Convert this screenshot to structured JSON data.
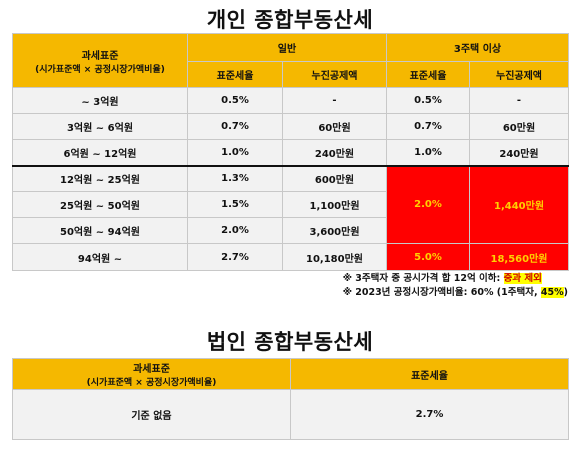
{
  "individual": {
    "title": "개인 종합부동산세",
    "header": {
      "base_line1": "과세표준",
      "base_line2": "(시가표준액 × 공정시장가액비율)",
      "general": "일반",
      "multi": "3주택 이상",
      "rate": "표준세율",
      "deduction": "누진공제액"
    },
    "rows": [
      {
        "base": "~ 3억원",
        "rate": "0.5%",
        "deduction": "-",
        "m_rate": "0.5%",
        "m_deduction": "-"
      },
      {
        "base": "3억원 ~ 6억원",
        "rate": "0.7%",
        "deduction": "60만원",
        "m_rate": "0.7%",
        "m_deduction": "60만원"
      },
      {
        "base": "6억원 ~ 12억원",
        "rate": "1.0%",
        "deduction": "240만원",
        "m_rate": "1.0%",
        "m_deduction": "240만원"
      },
      {
        "base": "12억원 ~ 25억원",
        "rate": "1.3%",
        "deduction": "600만원"
      },
      {
        "base": "25억원 ~ 50억원",
        "rate": "1.5%",
        "deduction": "1,100만원"
      },
      {
        "base": "50억원 ~ 94억원",
        "rate": "2.0%",
        "deduction": "3,600만원"
      },
      {
        "base": "94억원 ~",
        "rate": "2.7%",
        "deduction": "10,180만원",
        "m_rate": "5.0%",
        "m_deduction": "18,560만원"
      }
    ],
    "merged_multi": {
      "rate": "2.0%",
      "deduction": "1,440만원"
    },
    "note1_prefix": "※ 3주택자 중 공시가격 합 12억 이하: ",
    "note1_highlight": "중과 제외",
    "note2_prefix": "※ 2023년 공정시장가액비율: 60% (1주택자, ",
    "note2_highlight": "45%",
    "note2_suffix": ")"
  },
  "corporate": {
    "title": "법인 종합부동산세",
    "header": {
      "base_line1": "과세표준",
      "base_line2": "(시가표준액 × 공정시장가액비율)",
      "rate": "표준세율"
    },
    "row": {
      "base": "기준 없음",
      "rate": "2.7%"
    }
  },
  "colors": {
    "header": "#f5b800",
    "cell": "#f2f2f2",
    "red": "#ff0000",
    "red_text": "#ffd000",
    "highlight": "#ffff00"
  }
}
